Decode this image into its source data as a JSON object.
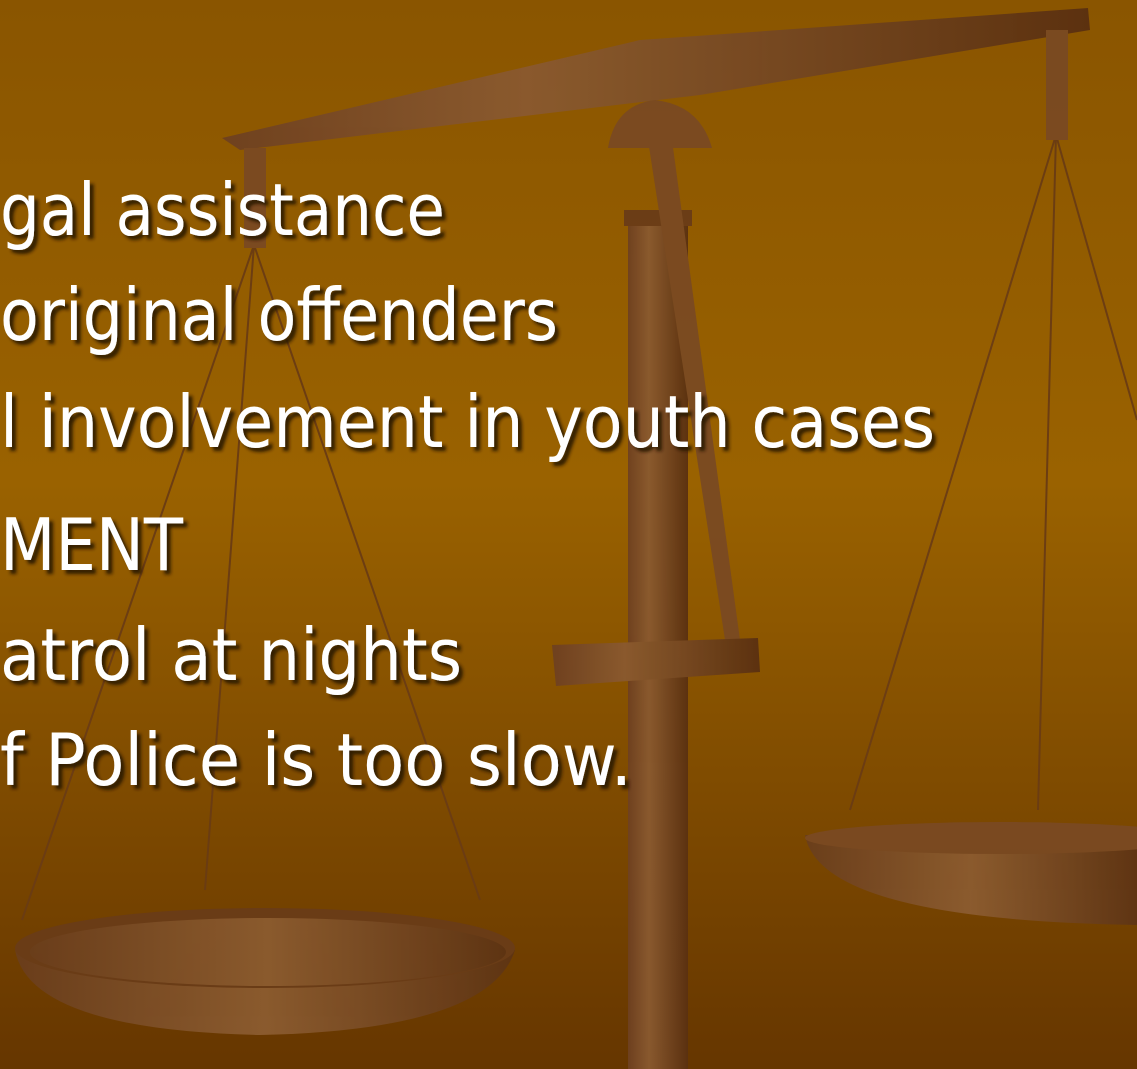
{
  "lines": [
    "gal assistance",
    "original offenders",
    "l involvement in youth cases",
    "MENT",
    "atrol at nights",
    "f Police is too slow."
  ]
}
